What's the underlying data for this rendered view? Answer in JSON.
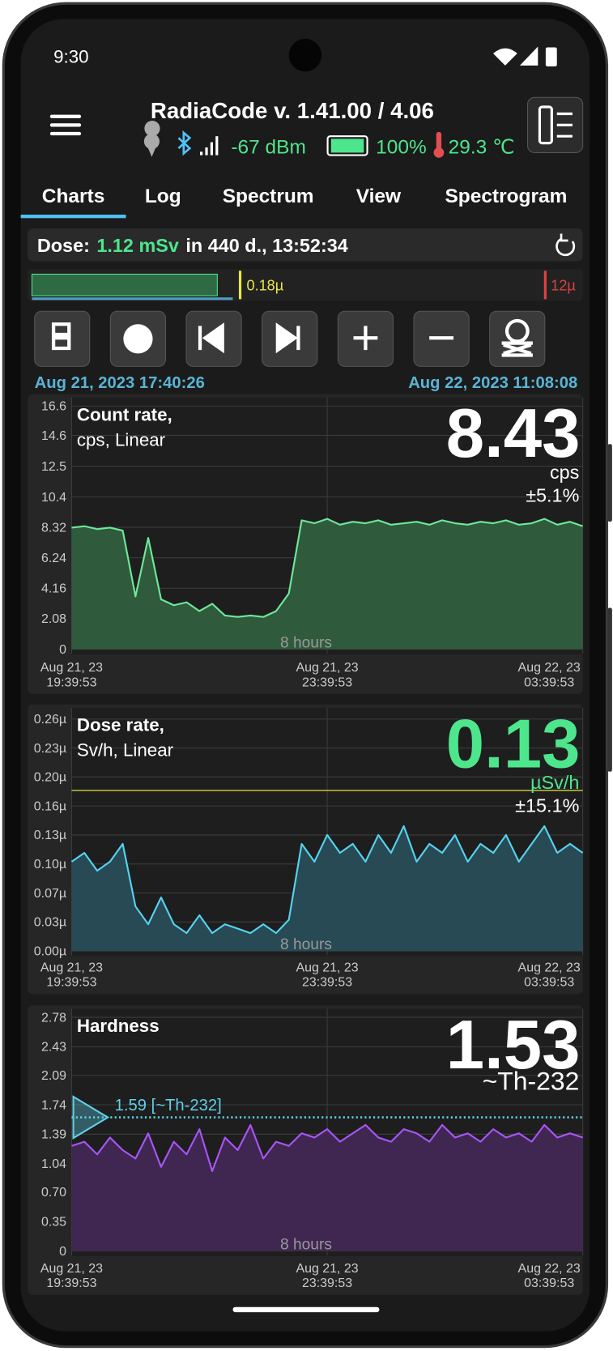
{
  "status_bar": {
    "time": "9:30"
  },
  "header": {
    "title": "RadiaCode v. 1.41.00 / 4.06",
    "signal": "-67 dBm",
    "battery": "100%",
    "temperature": "29.3 ℃"
  },
  "tabs": [
    "Charts",
    "Log",
    "Spectrum",
    "View",
    "Spectrogram"
  ],
  "dose": {
    "label": "Dose:",
    "value": "1.12 mSv",
    "rest": "in 440 d., 13:52:34"
  },
  "dose_scale": {
    "threshold_label": "0.18µ",
    "max_label": "12µ"
  },
  "range": {
    "start": "Aug 21, 2023 17:40:26",
    "end": "Aug 22, 2023 11:08:08"
  },
  "charts": [
    {
      "type": "line",
      "title": [
        "Count rate,",
        "cps, Linear"
      ],
      "reading": "8.43",
      "unit": "cps",
      "error": "±5.1%",
      "value_color": "#ffffff",
      "annotation": "8 hours",
      "line_color": "#6ee89a",
      "area_color": "#2f5b3c",
      "ylim": [
        0,
        16.6
      ],
      "yticks": [
        0,
        2.08,
        4.16,
        6.24,
        8.32,
        10.4,
        12.5,
        14.6,
        16.6
      ],
      "xlim": [
        0,
        8
      ],
      "xticks": [
        {
          "value": 0,
          "label": [
            "Aug 21, 23",
            "19:39:53"
          ]
        },
        {
          "value": 4,
          "label": [
            "Aug 21, 23",
            "23:39:53"
          ]
        },
        {
          "value": 8,
          "label": [
            "Aug 22, 23",
            "03:39:53"
          ]
        }
      ],
      "x": [
        0,
        0.2,
        0.4,
        0.6,
        0.8,
        1,
        1.2,
        1.4,
        1.6,
        1.8,
        2,
        2.2,
        2.4,
        2.6,
        2.8,
        3,
        3.2,
        3.4,
        3.6,
        3.8,
        4,
        4.2,
        4.4,
        4.6,
        4.8,
        5,
        5.2,
        5.4,
        5.6,
        5.8,
        6,
        6.2,
        6.4,
        6.6,
        6.8,
        7,
        7.2,
        7.4,
        7.6,
        7.8,
        8
      ],
      "values": [
        8.3,
        8.4,
        8.2,
        8.3,
        8.1,
        3.6,
        7.6,
        3.4,
        3.0,
        3.2,
        2.6,
        3.1,
        2.3,
        2.2,
        2.3,
        2.2,
        2.6,
        3.8,
        8.8,
        8.6,
        8.9,
        8.5,
        8.7,
        8.6,
        8.8,
        8.5,
        8.6,
        8.7,
        8.5,
        8.8,
        8.6,
        8.5,
        8.7,
        8.6,
        8.8,
        8.5,
        8.6,
        8.9,
        8.5,
        8.7,
        8.4
      ]
    },
    {
      "type": "line",
      "title": [
        "Dose rate,",
        "Sv/h, Linear"
      ],
      "reading": "0.13",
      "unit": "µSv/h",
      "error": "±15.1%",
      "value_color": "#4ee68c",
      "annotation": "8 hours",
      "line_color": "#56d3f0",
      "area_color": "#274a54",
      "threshold": 0.18,
      "threshold_color": "#b8b83a",
      "ylim": [
        0,
        0.26
      ],
      "yticks": [
        {
          "value": 0,
          "label": "0.00µ"
        },
        {
          "value": 0.0325,
          "label": "0.03µ"
        },
        {
          "value": 0.065,
          "label": "0.07µ"
        },
        {
          "value": 0.0975,
          "label": "0.10µ"
        },
        {
          "value": 0.13,
          "label": "0.13µ"
        },
        {
          "value": 0.1625,
          "label": "0.16µ"
        },
        {
          "value": 0.195,
          "label": "0.20µ"
        },
        {
          "value": 0.2275,
          "label": "0.23µ"
        },
        {
          "value": 0.26,
          "label": "0.26µ"
        }
      ],
      "xlim": [
        0,
        8
      ],
      "xticks": [
        {
          "value": 0,
          "label": [
            "Aug 21, 23",
            "19:39:53"
          ]
        },
        {
          "value": 4,
          "label": [
            "Aug 21, 23",
            "23:39:53"
          ]
        },
        {
          "value": 8,
          "label": [
            "Aug 22, 23",
            "03:39:53"
          ]
        }
      ],
      "x": [
        0,
        0.2,
        0.4,
        0.6,
        0.8,
        1,
        1.2,
        1.4,
        1.6,
        1.8,
        2,
        2.2,
        2.4,
        2.6,
        2.8,
        3,
        3.2,
        3.4,
        3.6,
        3.8,
        4,
        4.2,
        4.4,
        4.6,
        4.8,
        5,
        5.2,
        5.4,
        5.6,
        5.8,
        6,
        6.2,
        6.4,
        6.6,
        6.8,
        7,
        7.2,
        7.4,
        7.6,
        7.8,
        8
      ],
      "values": [
        0.1,
        0.11,
        0.09,
        0.1,
        0.12,
        0.05,
        0.03,
        0.06,
        0.03,
        0.02,
        0.04,
        0.02,
        0.03,
        0.025,
        0.02,
        0.03,
        0.02,
        0.035,
        0.12,
        0.1,
        0.13,
        0.11,
        0.12,
        0.1,
        0.13,
        0.11,
        0.14,
        0.1,
        0.12,
        0.11,
        0.13,
        0.1,
        0.12,
        0.11,
        0.13,
        0.1,
        0.12,
        0.14,
        0.11,
        0.12,
        0.11
      ]
    },
    {
      "type": "line",
      "title": [
        "Hardness"
      ],
      "reading": "1.53",
      "unit": "~Th-232",
      "value_color": "#ffffff",
      "annotation": "8 hours",
      "line_color": "#a855f7",
      "area_color": "#3f2752",
      "reference": {
        "value": 1.59,
        "label": "1.59 [~Th-232]"
      },
      "reference_color": "#5fd0e8",
      "ylim": [
        0,
        2.78
      ],
      "yticks": [
        0,
        0.35,
        {
          "value": 0.7,
          "label": "0.70"
        },
        1.04,
        1.39,
        1.74,
        2.09,
        2.43,
        2.78
      ],
      "xlim": [
        0,
        8
      ],
      "xticks": [
        {
          "value": 0,
          "label": [
            "Aug 21, 23",
            "19:39:53"
          ]
        },
        {
          "value": 4,
          "label": [
            "Aug 21, 23",
            "23:39:53"
          ]
        },
        {
          "value": 8,
          "label": [
            "Aug 22, 23",
            "03:39:53"
          ]
        }
      ],
      "x": [
        0,
        0.2,
        0.4,
        0.6,
        0.8,
        1,
        1.2,
        1.4,
        1.6,
        1.8,
        2,
        2.2,
        2.4,
        2.6,
        2.8,
        3,
        3.2,
        3.4,
        3.6,
        3.8,
        4,
        4.2,
        4.4,
        4.6,
        4.8,
        5,
        5.2,
        5.4,
        5.6,
        5.8,
        6,
        6.2,
        6.4,
        6.6,
        6.8,
        7,
        7.2,
        7.4,
        7.6,
        7.8,
        8
      ],
      "values": [
        1.25,
        1.3,
        1.15,
        1.35,
        1.2,
        1.1,
        1.4,
        1.0,
        1.3,
        1.15,
        1.45,
        0.95,
        1.35,
        1.2,
        1.5,
        1.1,
        1.3,
        1.25,
        1.4,
        1.35,
        1.45,
        1.3,
        1.4,
        1.5,
        1.35,
        1.3,
        1.45,
        1.4,
        1.3,
        1.5,
        1.35,
        1.4,
        1.3,
        1.45,
        1.35,
        1.4,
        1.3,
        1.5,
        1.35,
        1.4,
        1.35
      ]
    }
  ]
}
